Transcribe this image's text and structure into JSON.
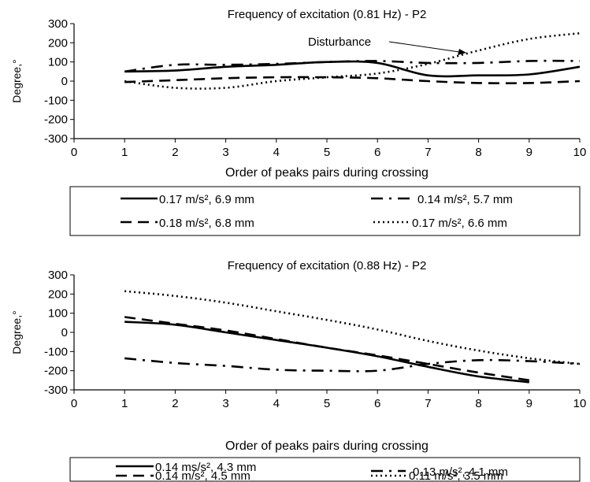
{
  "chart_data": [
    {
      "type": "line",
      "title": "Frequency of excitation (0.81 Hz) - P2",
      "xlabel": "Order of peaks pairs during crossing",
      "ylabel": "Degree,°",
      "xlim": [
        0,
        10
      ],
      "ylim": [
        -300,
        300
      ],
      "x_ticks": [
        "0",
        "1",
        "2",
        "3",
        "4",
        "5",
        "6",
        "7",
        "8",
        "9",
        "10"
      ],
      "y_ticks": [
        "300",
        "200",
        "100",
        "0",
        "-100",
        "-200",
        "-300"
      ],
      "grid": false,
      "legend_position": "bottom",
      "annotation": {
        "text": "Disturbance",
        "x": 7.8,
        "y": 160
      },
      "series": [
        {
          "name": "0.17 m/s², 6.9 mm",
          "style": "solid",
          "x": [
            1,
            2,
            3,
            4,
            5,
            6,
            7,
            8,
            9,
            10
          ],
          "y": [
            50,
            55,
            75,
            85,
            100,
            95,
            30,
            30,
            35,
            75
          ]
        },
        {
          "name": "0.14 m/s², 5.7 mm",
          "style": "dashdot",
          "x": [
            1,
            2,
            3,
            4,
            5,
            6,
            7,
            8,
            9,
            10
          ],
          "y": [
            50,
            85,
            85,
            90,
            100,
            105,
            95,
            95,
            105,
            105
          ]
        },
        {
          "name": "0.18 m/s², 6.8 mm",
          "style": "dashed",
          "x": [
            1,
            2,
            3,
            4,
            5,
            6,
            7,
            8,
            9,
            10
          ],
          "y": [
            -5,
            5,
            15,
            20,
            20,
            15,
            0,
            -10,
            -10,
            0
          ]
        },
        {
          "name": "0.17 m/s², 6.6 mm",
          "style": "dotted",
          "x": [
            1,
            2,
            3,
            4,
            5,
            6,
            7,
            8,
            9,
            10
          ],
          "y": [
            0,
            -35,
            -35,
            0,
            20,
            40,
            90,
            160,
            220,
            250
          ]
        }
      ]
    },
    {
      "type": "line",
      "title": "Frequency of excitation (0.88 Hz) - P2",
      "xlabel": "Order of peaks pairs during crossing",
      "ylabel": "Degree,°",
      "xlim": [
        0,
        10
      ],
      "ylim": [
        -300,
        300
      ],
      "x_ticks": [
        "0",
        "1",
        "2",
        "3",
        "4",
        "5",
        "6",
        "7",
        "8",
        "9",
        "10"
      ],
      "y_ticks": [
        "300",
        "200",
        "100",
        "0",
        "-100",
        "-200",
        "-300"
      ],
      "grid": false,
      "legend_position": "bottom",
      "series": [
        {
          "name": "0.14 ms/s², 4.3 mm",
          "style": "solid",
          "x": [
            1,
            2,
            3,
            4,
            5,
            6,
            7,
            8,
            9
          ],
          "y": [
            55,
            40,
            0,
            -40,
            -80,
            -125,
            -180,
            -230,
            -260
          ]
        },
        {
          "name": "0.13 m/s², 4.1 mm",
          "style": "dashdot",
          "x": [
            1,
            2,
            3,
            4,
            5,
            6,
            7,
            8,
            9,
            10
          ],
          "y": [
            -135,
            -160,
            -175,
            -195,
            -200,
            -200,
            -165,
            -145,
            -150,
            -165
          ]
        },
        {
          "name": "0.14 m/s², 4.5 mm",
          "style": "dashed",
          "x": [
            1,
            2,
            3,
            4,
            5,
            6,
            7,
            8,
            9
          ],
          "y": [
            80,
            45,
            10,
            -35,
            -80,
            -120,
            -165,
            -210,
            -250
          ]
        },
        {
          "name": "0.11 m/s², 3.5 mm",
          "style": "dotted",
          "x": [
            1,
            2,
            3,
            4,
            5,
            6,
            7,
            8,
            9,
            10
          ],
          "y": [
            215,
            190,
            155,
            110,
            65,
            15,
            -45,
            -95,
            -135,
            -165
          ]
        }
      ]
    }
  ]
}
